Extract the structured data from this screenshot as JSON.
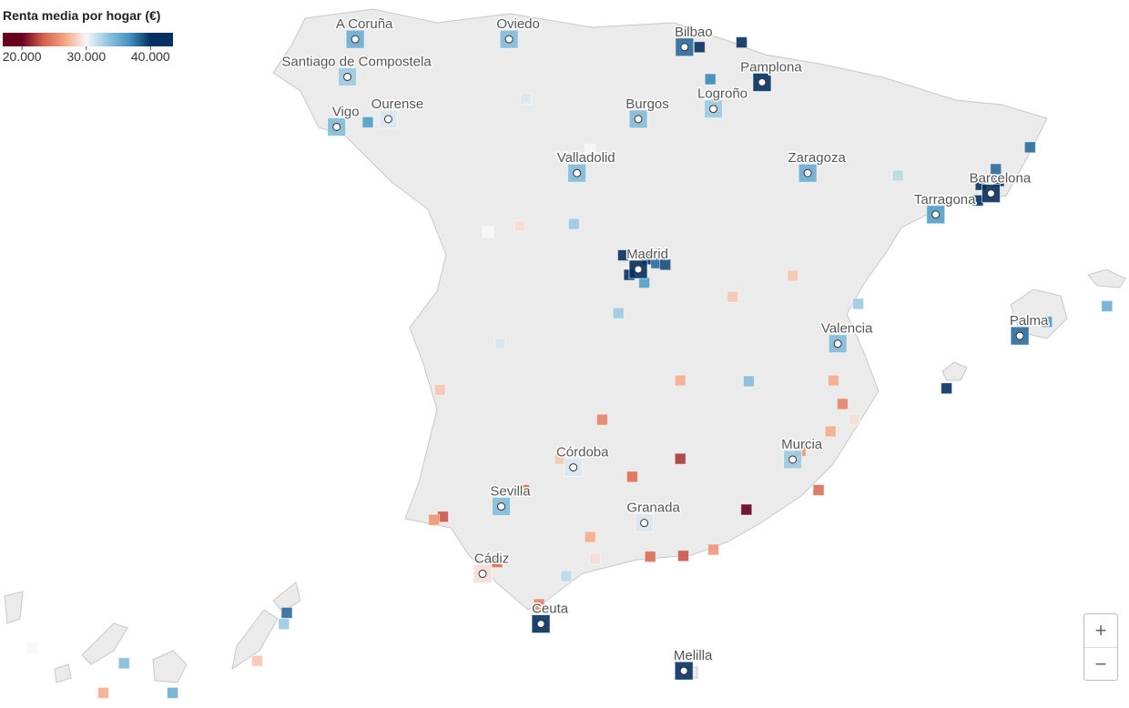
{
  "legend": {
    "title": "Renta media por hogar (€)",
    "lim": [
      17000,
      43500
    ],
    "ticks": [
      {
        "value": 20000,
        "label": "20.000"
      },
      {
        "value": 30000,
        "label": "30.000"
      },
      {
        "value": 40000,
        "label": "40.000"
      }
    ],
    "domain": [
      20000,
      40000
    ],
    "colors": [
      "#67001f",
      "#d6604d",
      "#f4a582",
      "#f7f7f7",
      "#92c5de",
      "#4393c3",
      "#053061"
    ]
  },
  "cities": [
    {
      "name": "A Coruña",
      "lon": -8.41,
      "lat": 43.36,
      "value": 35000
    },
    {
      "name": "Oviedo",
      "lon": -5.85,
      "lat": 43.36,
      "value": 34000
    },
    {
      "name": "Bilbao",
      "lon": -2.93,
      "lat": 43.26,
      "value": 38000
    },
    {
      "name": "Pamplona",
      "lon": -1.64,
      "lat": 42.81,
      "value": 41000
    },
    {
      "name": "Santiago de Compostela",
      "lon": -8.54,
      "lat": 42.88,
      "value": 33000
    },
    {
      "name": "Vigo",
      "lon": -8.72,
      "lat": 42.24,
      "value": 34000
    },
    {
      "name": "Ourense",
      "lon": -7.86,
      "lat": 42.34,
      "value": 31000
    },
    {
      "name": "Burgos",
      "lon": -3.7,
      "lat": 42.34,
      "value": 34000
    },
    {
      "name": "Logroño",
      "lon": -2.45,
      "lat": 42.47,
      "value": 33000
    },
    {
      "name": "Valladolid",
      "lon": -4.72,
      "lat": 41.65,
      "value": 34000
    },
    {
      "name": "Zaragoza",
      "lon": -0.88,
      "lat": 41.65,
      "value": 35000
    },
    {
      "name": "Barcelona",
      "lon": 2.17,
      "lat": 41.39,
      "value": 41000
    },
    {
      "name": "Tarragona",
      "lon": 1.25,
      "lat": 41.12,
      "value": 36000
    },
    {
      "name": "Madrid",
      "lon": -3.7,
      "lat": 40.42,
      "value": 42000
    },
    {
      "name": "Palma",
      "lon": 2.65,
      "lat": 39.57,
      "value": 38000
    },
    {
      "name": "Valencia",
      "lon": -0.38,
      "lat": 39.47,
      "value": 34000
    },
    {
      "name": "Murcia",
      "lon": -1.13,
      "lat": 37.99,
      "value": 33000
    },
    {
      "name": "Córdoba",
      "lon": -4.78,
      "lat": 37.89,
      "value": 31000
    },
    {
      "name": "Sevilla",
      "lon": -5.98,
      "lat": 37.39,
      "value": 34000
    },
    {
      "name": "Granada",
      "lon": -3.6,
      "lat": 37.18,
      "value": 31000
    },
    {
      "name": "Cádiz",
      "lon": -6.29,
      "lat": 36.53,
      "value": 29000
    },
    {
      "name": "Ceuta",
      "lon": -5.32,
      "lat": 35.89,
      "value": 41000
    },
    {
      "name": "Melilla",
      "lon": -2.94,
      "lat": 35.29,
      "value": 42000
    }
  ],
  "markers": [
    {
      "lon": -3.55,
      "lat": 40.55,
      "value": 43000
    },
    {
      "lon": -3.85,
      "lat": 40.35,
      "value": 40000
    },
    {
      "lon": -3.4,
      "lat": 40.5,
      "value": 38000
    },
    {
      "lon": -3.95,
      "lat": 40.6,
      "value": 44000
    },
    {
      "lon": -3.6,
      "lat": 40.25,
      "value": 36000
    },
    {
      "lon": -3.25,
      "lat": 40.48,
      "value": 39000
    },
    {
      "lon": 2.0,
      "lat": 41.5,
      "value": 42000
    },
    {
      "lon": 2.3,
      "lat": 41.55,
      "value": 40000
    },
    {
      "lon": 1.95,
      "lat": 41.3,
      "value": 43000
    },
    {
      "lon": 2.25,
      "lat": 41.7,
      "value": 38000
    },
    {
      "lon": -1.98,
      "lat": 43.32,
      "value": 42000
    },
    {
      "lon": -2.68,
      "lat": 43.26,
      "value": 40000
    },
    {
      "lon": -2.5,
      "lat": 42.85,
      "value": 37000
    },
    {
      "lon": 2.82,
      "lat": 41.98,
      "value": 38000
    },
    {
      "lon": 3.1,
      "lat": 39.75,
      "value": 36000
    },
    {
      "lon": 1.43,
      "lat": 38.9,
      "value": 40000
    },
    {
      "lon": 4.1,
      "lat": 39.95,
      "value": 35000
    },
    {
      "lon": -4.42,
      "lat": 36.72,
      "value": 29000
    },
    {
      "lon": -4.9,
      "lat": 36.5,
      "value": 32000
    },
    {
      "lon": -3.5,
      "lat": 36.75,
      "value": 24000
    },
    {
      "lon": -2.45,
      "lat": 36.84,
      "value": 26000
    },
    {
      "lon": -2.95,
      "lat": 36.76,
      "value": 23000
    },
    {
      "lon": -5.35,
      "lat": 36.14,
      "value": 25000
    },
    {
      "lon": -6.05,
      "lat": 36.68,
      "value": 24000
    },
    {
      "lon": -6.95,
      "lat": 37.26,
      "value": 23000
    },
    {
      "lon": -7.1,
      "lat": 37.22,
      "value": 26000
    },
    {
      "lon": -5.6,
      "lat": 37.6,
      "value": 24000
    },
    {
      "lon": -4.5,
      "lat": 37.0,
      "value": 27000
    },
    {
      "lon": -3.8,
      "lat": 37.77,
      "value": 24000
    },
    {
      "lon": -3.0,
      "lat": 38.0,
      "value": 22000
    },
    {
      "lon": -1.9,
      "lat": 37.35,
      "value": 20000
    },
    {
      "lon": -0.7,
      "lat": 37.6,
      "value": 24000
    },
    {
      "lon": -0.5,
      "lat": 38.35,
      "value": 27000
    },
    {
      "lon": -0.1,
      "lat": 38.5,
      "value": 29000
    },
    {
      "lon": -0.45,
      "lat": 39.0,
      "value": 27000
    },
    {
      "lon": -0.3,
      "lat": 38.7,
      "value": 25000
    },
    {
      "lon": -1.0,
      "lat": 38.1,
      "value": 26000
    },
    {
      "lon": -4.3,
      "lat": 38.5,
      "value": 25000
    },
    {
      "lon": -5.0,
      "lat": 38.0,
      "value": 28000
    },
    {
      "lon": -4.77,
      "lat": 41.0,
      "value": 33000
    },
    {
      "lon": -5.67,
      "lat": 40.97,
      "value": 29000
    },
    {
      "lon": -6.0,
      "lat": 39.47,
      "value": 31000
    },
    {
      "lon": -7.0,
      "lat": 38.88,
      "value": 28000
    },
    {
      "lon": -4.03,
      "lat": 39.86,
      "value": 33000
    },
    {
      "lon": -2.13,
      "lat": 40.07,
      "value": 28000
    },
    {
      "lon": -3.0,
      "lat": 39.0,
      "value": 27000
    },
    {
      "lon": -1.86,
      "lat": 38.99,
      "value": 34000
    },
    {
      "lon": -1.13,
      "lat": 40.34,
      "value": 28000
    },
    {
      "lon": -0.04,
      "lat": 39.98,
      "value": 33000
    },
    {
      "lon": 0.62,
      "lat": 41.62,
      "value": 32000
    },
    {
      "lon": -6.2,
      "lat": 40.9,
      "value": 30000
    },
    {
      "lon": -4.5,
      "lat": 41.95,
      "value": 30000
    },
    {
      "lon": -5.57,
      "lat": 42.6,
      "value": 31000
    },
    {
      "lon": -8.2,
      "lat": 42.3,
      "value": 36000
    },
    {
      "lon": -16.25,
      "lat": 28.47,
      "value": 34000
    },
    {
      "lon": -15.43,
      "lat": 28.1,
      "value": 35000
    },
    {
      "lon": -16.6,
      "lat": 28.1,
      "value": 27000
    },
    {
      "lon": -13.55,
      "lat": 28.96,
      "value": 33000
    },
    {
      "lon": -14.0,
      "lat": 28.5,
      "value": 28000
    },
    {
      "lon": -17.8,
      "lat": 28.66,
      "value": 30000
    },
    {
      "lon": -13.5,
      "lat": 29.1,
      "value": 38000
    }
  ],
  "zoom": {
    "in": "+",
    "out": "−"
  }
}
